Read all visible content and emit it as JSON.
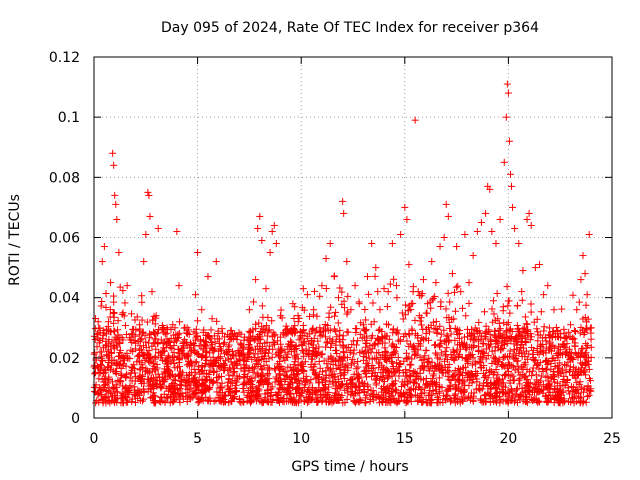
{
  "chart_data": {
    "type": "scatter",
    "title": "Day 095 of 2024, Rate Of TEC Index for receiver p364",
    "xlabel": "GPS time / hours",
    "ylabel": "ROTI / TECUs",
    "xlim": [
      0,
      25
    ],
    "ylim": [
      0,
      0.12
    ],
    "xticks": [
      0,
      5,
      10,
      15,
      20,
      25
    ],
    "xtick_labels": [
      "0",
      "5",
      "10",
      "15",
      "20",
      "25"
    ],
    "yticks": [
      0,
      0.02,
      0.04,
      0.06,
      0.08,
      0.1,
      0.12
    ],
    "ytick_labels": [
      "0",
      "0.02",
      "0.04",
      "0.06",
      "0.08",
      "0.1",
      "0.12"
    ],
    "grid": true,
    "marker": "plus",
    "color": "#ff0000",
    "series": [
      {
        "name": "ROTI",
        "points": [
          [
            0.1,
            0.011
          ],
          [
            0.2,
            0.032
          ],
          [
            0.3,
            0.015
          ],
          [
            0.4,
            0.052
          ],
          [
            0.5,
            0.057
          ],
          [
            0.6,
            0.021
          ],
          [
            0.8,
            0.045
          ],
          [
            0.9,
            0.088
          ],
          [
            0.95,
            0.084
          ],
          [
            1.0,
            0.074
          ],
          [
            1.05,
            0.071
          ],
          [
            1.1,
            0.066
          ],
          [
            1.2,
            0.055
          ],
          [
            1.4,
            0.035
          ],
          [
            1.6,
            0.044
          ],
          [
            1.8,
            0.028
          ],
          [
            2.0,
            0.023
          ],
          [
            2.2,
            0.031
          ],
          [
            2.4,
            0.052
          ],
          [
            2.5,
            0.061
          ],
          [
            2.6,
            0.075
          ],
          [
            2.65,
            0.074
          ],
          [
            2.7,
            0.067
          ],
          [
            2.8,
            0.042
          ],
          [
            3.0,
            0.034
          ],
          [
            3.1,
            0.063
          ],
          [
            3.3,
            0.022
          ],
          [
            3.5,
            0.018
          ],
          [
            3.8,
            0.031
          ],
          [
            4.0,
            0.062
          ],
          [
            4.1,
            0.044
          ],
          [
            4.3,
            0.024
          ],
          [
            4.6,
            0.018
          ],
          [
            4.9,
            0.041
          ],
          [
            5.0,
            0.055
          ],
          [
            5.2,
            0.036
          ],
          [
            5.5,
            0.047
          ],
          [
            5.7,
            0.033
          ],
          [
            5.9,
            0.052
          ],
          [
            6.0,
            0.02
          ],
          [
            6.3,
            0.016
          ],
          [
            6.6,
            0.012
          ],
          [
            6.9,
            0.014
          ],
          [
            7.2,
            0.021
          ],
          [
            7.5,
            0.036
          ],
          [
            7.8,
            0.046
          ],
          [
            7.9,
            0.063
          ],
          [
            8.0,
            0.067
          ],
          [
            8.1,
            0.059
          ],
          [
            8.3,
            0.043
          ],
          [
            8.5,
            0.055
          ],
          [
            8.6,
            0.062
          ],
          [
            8.7,
            0.064
          ],
          [
            8.8,
            0.058
          ],
          [
            9.0,
            0.034
          ],
          [
            9.3,
            0.028
          ],
          [
            9.6,
            0.038
          ],
          [
            9.9,
            0.026
          ],
          [
            10.1,
            0.043
          ],
          [
            10.3,
            0.041
          ],
          [
            10.6,
            0.036
          ],
          [
            10.9,
            0.03
          ],
          [
            11.0,
            0.044
          ],
          [
            11.2,
            0.053
          ],
          [
            11.4,
            0.058
          ],
          [
            11.6,
            0.047
          ],
          [
            11.8,
            0.04
          ],
          [
            12.0,
            0.072
          ],
          [
            12.05,
            0.068
          ],
          [
            12.2,
            0.052
          ],
          [
            12.4,
            0.036
          ],
          [
            12.6,
            0.044
          ],
          [
            12.8,
            0.038
          ],
          [
            13.0,
            0.031
          ],
          [
            13.2,
            0.047
          ],
          [
            13.4,
            0.058
          ],
          [
            13.6,
            0.05
          ],
          [
            13.8,
            0.036
          ],
          [
            14.0,
            0.043
          ],
          [
            14.2,
            0.042
          ],
          [
            14.4,
            0.058
          ],
          [
            14.6,
            0.044
          ],
          [
            14.8,
            0.061
          ],
          [
            15.0,
            0.07
          ],
          [
            15.1,
            0.066
          ],
          [
            15.2,
            0.051
          ],
          [
            15.4,
            0.042
          ],
          [
            15.5,
            0.099
          ],
          [
            15.7,
            0.034
          ],
          [
            15.9,
            0.046
          ],
          [
            16.1,
            0.038
          ],
          [
            16.3,
            0.052
          ],
          [
            16.5,
            0.045
          ],
          [
            16.7,
            0.057
          ],
          [
            16.9,
            0.06
          ],
          [
            17.0,
            0.071
          ],
          [
            17.1,
            0.067
          ],
          [
            17.3,
            0.048
          ],
          [
            17.5,
            0.057
          ],
          [
            17.7,
            0.042
          ],
          [
            17.9,
            0.061
          ],
          [
            18.1,
            0.045
          ],
          [
            18.3,
            0.054
          ],
          [
            18.5,
            0.062
          ],
          [
            18.7,
            0.065
          ],
          [
            18.9,
            0.068
          ],
          [
            19.0,
            0.077
          ],
          [
            19.1,
            0.076
          ],
          [
            19.2,
            0.062
          ],
          [
            19.4,
            0.058
          ],
          [
            19.6,
            0.066
          ],
          [
            19.8,
            0.085
          ],
          [
            19.9,
            0.1
          ],
          [
            19.95,
            0.111
          ],
          [
            20.0,
            0.108
          ],
          [
            20.05,
            0.092
          ],
          [
            20.1,
            0.081
          ],
          [
            20.15,
            0.077
          ],
          [
            20.2,
            0.07
          ],
          [
            20.3,
            0.063
          ],
          [
            20.5,
            0.058
          ],
          [
            20.7,
            0.049
          ],
          [
            20.9,
            0.066
          ],
          [
            21.0,
            0.068
          ],
          [
            21.1,
            0.064
          ],
          [
            21.3,
            0.05
          ],
          [
            21.5,
            0.051
          ],
          [
            21.7,
            0.041
          ],
          [
            21.9,
            0.044
          ],
          [
            22.2,
            0.036
          ],
          [
            22.5,
            0.028
          ],
          [
            22.8,
            0.022
          ],
          [
            23.0,
            0.031
          ],
          [
            23.3,
            0.036
          ],
          [
            23.5,
            0.046
          ],
          [
            23.6,
            0.054
          ],
          [
            23.7,
            0.048
          ],
          [
            23.8,
            0.041
          ],
          [
            23.9,
            0.061
          ],
          [
            24.0,
            0.03
          ]
        ],
        "band": {
          "description": "dense background",
          "baseline_range": [
            0.005,
            0.03
          ],
          "envelope": [
            [
              0,
              0.032
            ],
            [
              1,
              0.034
            ],
            [
              2,
              0.03
            ],
            [
              3,
              0.028
            ],
            [
              4,
              0.025
            ],
            [
              5,
              0.028
            ],
            [
              6,
              0.022
            ],
            [
              7,
              0.024
            ],
            [
              8,
              0.03
            ],
            [
              9,
              0.03
            ],
            [
              10,
              0.032
            ],
            [
              11,
              0.035
            ],
            [
              12,
              0.036
            ],
            [
              13,
              0.037
            ],
            [
              14,
              0.038
            ],
            [
              15,
              0.036
            ],
            [
              16,
              0.038
            ],
            [
              17,
              0.037
            ],
            [
              18,
              0.035
            ],
            [
              19,
              0.036
            ],
            [
              20,
              0.034
            ],
            [
              21,
              0.033
            ],
            [
              22,
              0.03
            ],
            [
              23,
              0.03
            ],
            [
              24,
              0.03
            ]
          ]
        }
      }
    ]
  }
}
